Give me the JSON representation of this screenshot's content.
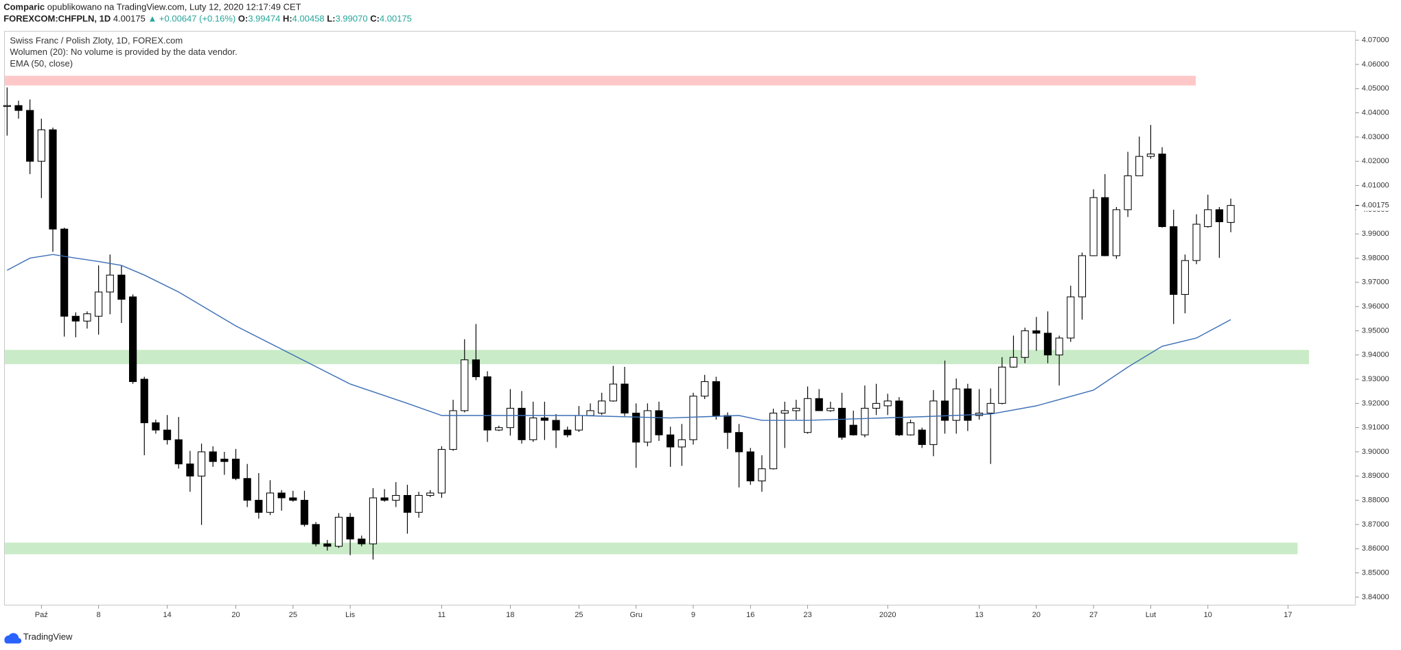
{
  "header": {
    "author": "Comparic",
    "published": "opublikowano na TradingView.com, Luty 12, 2020 12:17:49 CET",
    "symbol": "FOREXCOM:CHFPLN, 1D",
    "price": "4.00175",
    "change": "▲ +0.00647 (+0.16%)",
    "ohlc": [
      {
        "label": "O:",
        "value": "3.99474"
      },
      {
        "label": "H:",
        "value": "4.00458"
      },
      {
        "label": "L:",
        "value": "3.99070"
      },
      {
        "label": "C:",
        "value": "4.00175"
      }
    ]
  },
  "chart_data": {
    "type": "candlestick",
    "title": "Swiss Franc / Polish Zloty, 1D, FOREX.com",
    "subtitle": "Wolumen (20): No volume is provided by the data vendor.",
    "open": [
      4.043,
      4.043,
      4.041,
      4.02,
      4.033,
      3.992,
      3.956,
      3.954,
      3.956,
      3.966,
      3.973,
      3.964,
      3.93,
      3.912,
      3.909,
      3.905,
      3.895,
      3.89,
      3.9,
      3.897,
      3.897,
      3.889,
      3.88,
      3.875,
      3.883,
      3.881,
      3.88,
      3.87,
      3.862,
      3.861,
      3.873,
      3.864,
      3.862,
      3.881,
      3.88,
      3.882,
      3.875,
      3.882,
      3.883,
      3.901,
      3.917,
      3.938,
      3.931,
      3.909,
      3.91,
      3.918,
      3.905,
      3.914,
      3.913,
      3.909,
      3.909,
      3.915,
      3.916,
      3.921,
      3.928,
      3.916,
      3.904,
      3.917,
      3.907,
      3.902,
      3.905,
      3.923,
      3.929,
      3.915,
      3.908,
      3.9,
      3.888,
      3.893,
      3.916,
      3.917,
      3.908,
      3.922,
      3.917,
      3.918,
      3.911,
      3.907,
      3.918,
      3.919,
      3.921,
      3.907,
      3.909,
      3.903,
      3.921,
      3.913,
      3.926,
      3.915,
      3.916,
      3.92,
      3.935,
      3.939,
      3.95,
      3.949,
      3.94,
      3.947,
      3.964,
      3.981,
      4.005,
      3.981,
      4.0,
      4.014,
      4.022,
      4.023,
      3.993,
      3.965,
      3.979,
      3.993,
      4.0,
      3.99474
    ],
    "high": [
      4.0505,
      4.045,
      4.0455,
      4.0376,
      4.0339,
      3.9926,
      3.9576,
      3.958,
      3.977,
      3.9815,
      3.977,
      3.965,
      3.931,
      3.9133,
      3.9152,
      3.9144,
      3.9004,
      3.9034,
      3.9023,
      3.9,
      3.9012,
      3.895,
      3.8912,
      3.8883,
      3.8842,
      3.8839,
      3.8839,
      3.871,
      3.8636,
      3.8747,
      3.8747,
      3.8654,
      3.885,
      3.8846,
      3.8875,
      3.8864,
      3.8835,
      3.8842,
      3.9023,
      3.9215,
      3.9465,
      3.9528,
      3.9333,
      3.9108,
      3.9259,
      3.9251,
      3.9207,
      3.9207,
      3.9156,
      3.9104,
      3.9189,
      3.92,
      3.9244,
      3.9355,
      3.9351,
      3.92,
      3.92,
      3.9207,
      3.9104,
      3.9115,
      3.9244,
      3.9318,
      3.931,
      3.9163,
      3.9115,
      3.9016,
      3.8986,
      3.9178,
      3.9207,
      3.9215,
      3.927,
      3.9259,
      3.9207,
      3.9244,
      3.917,
      3.9274,
      3.9281,
      3.924,
      3.9226,
      3.9133,
      3.91,
      3.9255,
      3.9377,
      3.9303,
      3.9281,
      3.9259,
      3.9262,
      3.9391,
      3.948,
      3.9513,
      3.9557,
      3.958,
      3.948,
      3.9686,
      3.9823,
      4.0084,
      4.0147,
      4.0011,
      4.0239,
      4.0302,
      4.035,
      4.0258,
      4.0,
      3.9815,
      3.9981,
      4.0062,
      4.0011,
      4.00458
    ],
    "low": [
      4.0306,
      4.0376,
      4.0147,
      4.0048,
      3.9826,
      3.9476,
      3.9473,
      3.9509,
      3.9484,
      3.9568,
      3.9532,
      3.9281,
      3.8986,
      3.9075,
      3.903,
      3.8931,
      3.8835,
      3.8698,
      3.8938,
      3.8905,
      3.8883,
      3.8772,
      3.8724,
      3.8739,
      3.8757,
      3.8794,
      3.8691,
      3.861,
      3.8592,
      3.8603,
      3.8573,
      3.861,
      3.8555,
      3.8794,
      3.8772,
      3.8662,
      3.8728,
      3.8813,
      3.881,
      3.9004,
      3.9163,
      3.9296,
      3.9041,
      3.9086,
      3.9067,
      3.9034,
      3.9041,
      3.9049,
      3.9016,
      3.906,
      3.9082,
      3.9148,
      3.9152,
      3.9207,
      3.9148,
      3.8934,
      3.9023,
      3.9045,
      3.8938,
      3.8942,
      3.903,
      3.9218,
      3.9133,
      3.9012,
      3.8853,
      3.8864,
      3.8835,
      3.8927,
      3.9016,
      3.9133,
      3.9075,
      3.917,
      3.9165,
      3.905,
      3.9067,
      3.906,
      3.9152,
      3.9152,
      3.9065,
      3.9067,
      3.9016,
      3.8982,
      3.9075,
      3.9075,
      3.9086,
      3.9133,
      3.895,
      3.9196,
      3.9347,
      3.9366,
      3.9417,
      3.9366,
      3.9274,
      3.9454,
      3.9546,
      3.9808,
      3.9808,
      3.9797,
      3.997,
      4.014,
      4.021,
      3.9926,
      3.9528,
      3.9572,
      3.9775,
      3.9926,
      3.9801,
      3.9907
    ],
    "close": [
      4.043,
      4.041,
      4.02,
      4.033,
      3.992,
      3.956,
      3.954,
      3.957,
      3.966,
      3.973,
      3.963,
      3.929,
      3.912,
      3.909,
      3.905,
      3.895,
      3.89,
      3.9,
      3.896,
      3.896,
      3.889,
      3.88,
      3.875,
      3.883,
      3.881,
      3.88,
      3.87,
      3.862,
      3.861,
      3.873,
      3.864,
      3.862,
      3.881,
      3.88,
      3.882,
      3.875,
      3.882,
      3.883,
      3.901,
      3.917,
      3.938,
      3.931,
      3.909,
      3.91,
      3.918,
      3.905,
      3.914,
      3.913,
      3.909,
      3.907,
      3.915,
      3.917,
      3.921,
      3.928,
      3.916,
      3.904,
      3.917,
      3.907,
      3.902,
      3.905,
      3.923,
      3.929,
      3.915,
      3.908,
      3.9,
      3.888,
      3.893,
      3.916,
      3.917,
      3.918,
      3.922,
      3.917,
      3.918,
      3.906,
      3.907,
      3.918,
      3.92,
      3.921,
      3.907,
      3.912,
      3.903,
      3.921,
      3.913,
      3.926,
      3.913,
      3.916,
      3.92,
      3.935,
      3.939,
      3.95,
      3.949,
      3.94,
      3.947,
      3.964,
      3.981,
      4.005,
      3.981,
      4.0,
      4.014,
      4.022,
      4.023,
      3.993,
      3.965,
      3.979,
      3.994,
      4.0,
      3.995,
      4.00175
    ],
    "ema": {
      "name": "EMA (50, close)",
      "color": "#3c6fb5",
      "x": [
        0,
        2,
        4,
        6,
        8,
        10,
        12,
        15,
        20,
        25,
        30,
        35,
        38,
        42,
        50,
        58,
        64,
        66,
        70,
        80,
        86,
        90,
        95,
        98,
        101,
        104,
        107
      ],
      "values": [
        3.975,
        3.98,
        3.9815,
        3.98,
        3.9786,
        3.977,
        3.973,
        3.966,
        3.952,
        3.94,
        3.928,
        3.92,
        3.915,
        3.915,
        3.915,
        3.914,
        3.915,
        3.913,
        3.913,
        3.9145,
        3.9156,
        3.919,
        3.9255,
        3.935,
        3.9436,
        3.947,
        3.9546
      ]
    },
    "zones": [
      {
        "range": [
          4.0513,
          4.0553
        ],
        "x_end": 103.9,
        "color": "#ffc8c8"
      },
      {
        "range": [
          3.9362,
          3.9421
        ],
        "x_end": 113.8,
        "color": "#c9ebc7"
      },
      {
        "range": [
          3.8577,
          3.8625
        ],
        "x_end": 112.8,
        "color": "#c9ebc7"
      }
    ],
    "last_price": 4.00175,
    "up_color": "#ffffff",
    "down_color": "#000000",
    "grid": false,
    "xlim": [
      -0.23,
      117.9
    ],
    "ylim": [
      3.8367,
      4.0737
    ],
    "xticks": [
      {
        "value": 3,
        "label": "Paź"
      },
      8,
      14,
      20,
      25,
      {
        "value": 30,
        "label": "Lis"
      },
      {
        "value": 38,
        "label": "11"
      },
      {
        "value": 44,
        "label": "18"
      },
      {
        "value": 50,
        "label": "25"
      },
      {
        "value": 55,
        "label": "Gru"
      },
      {
        "value": 60,
        "label": "9"
      },
      {
        "value": 65,
        "label": "16"
      },
      {
        "value": 70,
        "label": "23"
      },
      {
        "value": 77,
        "label": "2020"
      },
      {
        "value": 85,
        "label": "13"
      },
      {
        "value": 90,
        "label": "20"
      },
      {
        "value": 95,
        "label": "27"
      },
      {
        "value": 100,
        "label": "Lut"
      },
      {
        "value": 105,
        "label": "10"
      },
      {
        "value": 112,
        "label": "17"
      }
    ],
    "yticks": [
      {
        "value": 3.84,
        "label": "3.84000"
      },
      {
        "value": 3.85,
        "label": "3.85000"
      },
      {
        "value": 3.86,
        "label": "3.86000"
      },
      {
        "value": 3.87,
        "label": "3.87000"
      },
      {
        "value": 3.88,
        "label": "3.88000"
      },
      {
        "value": 3.89,
        "label": "3.89000"
      },
      {
        "value": 3.9,
        "label": "3.90000"
      },
      {
        "value": 3.91,
        "label": "3.91000"
      },
      {
        "value": 3.92,
        "label": "3.92000"
      },
      {
        "value": 3.93,
        "label": "3.93000"
      },
      {
        "value": 3.94,
        "label": "3.94000"
      },
      {
        "value": 3.95,
        "label": "3.95000"
      },
      {
        "value": 3.96,
        "label": "3.96000"
      },
      {
        "value": 3.97,
        "label": "3.97000"
      },
      {
        "value": 3.98,
        "label": "3.98000"
      },
      {
        "value": 3.99,
        "label": "3.99000"
      },
      {
        "value": 4.0,
        "label": "4.00000"
      },
      {
        "value": 4.01,
        "label": "4.01000"
      },
      {
        "value": 4.02,
        "label": "4.02000"
      },
      {
        "value": 4.03,
        "label": "4.03000"
      },
      {
        "value": 4.04,
        "label": "4.04000"
      },
      {
        "value": 4.05,
        "label": "4.05000"
      },
      {
        "value": 4.06,
        "label": "4.06000"
      },
      {
        "value": 4.07,
        "label": "4.07000"
      }
    ]
  },
  "footer": {
    "brand": "TradingView"
  }
}
